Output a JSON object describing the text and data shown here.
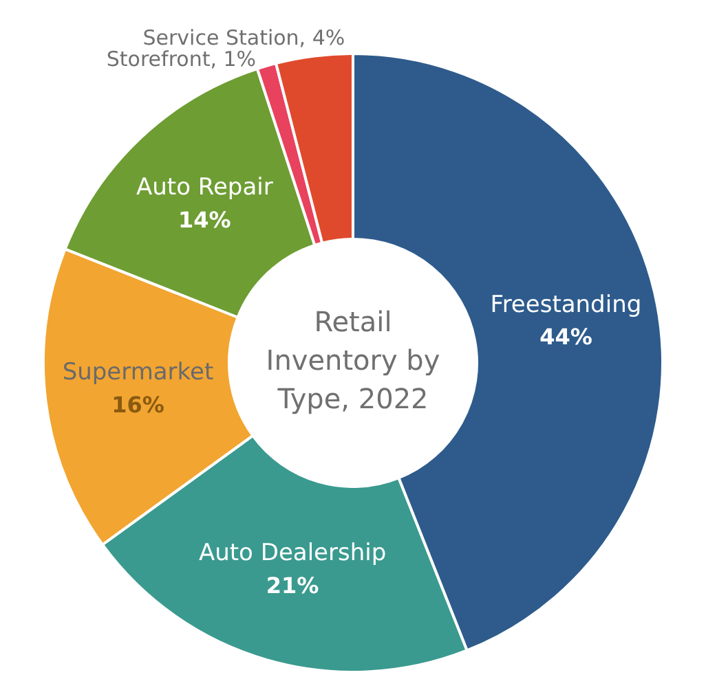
{
  "chart_data": {
    "type": "donut",
    "title": "Retail Inventory by Type, 2022",
    "categories": [
      "Freestanding",
      "Auto Dealership",
      "Supermarket",
      "Auto Repair",
      "Storefront",
      "Service Station"
    ],
    "values": [
      44,
      21,
      16,
      14,
      1,
      4
    ],
    "value_labels": [
      "44%",
      "21%",
      "16%",
      "14%",
      "1%",
      "4%"
    ],
    "colors": [
      "#2e5b8c",
      "#3a9a8f",
      "#f2a531",
      "#6e9d33",
      "#e8425e",
      "#e04a2c"
    ],
    "legend": false
  }
}
